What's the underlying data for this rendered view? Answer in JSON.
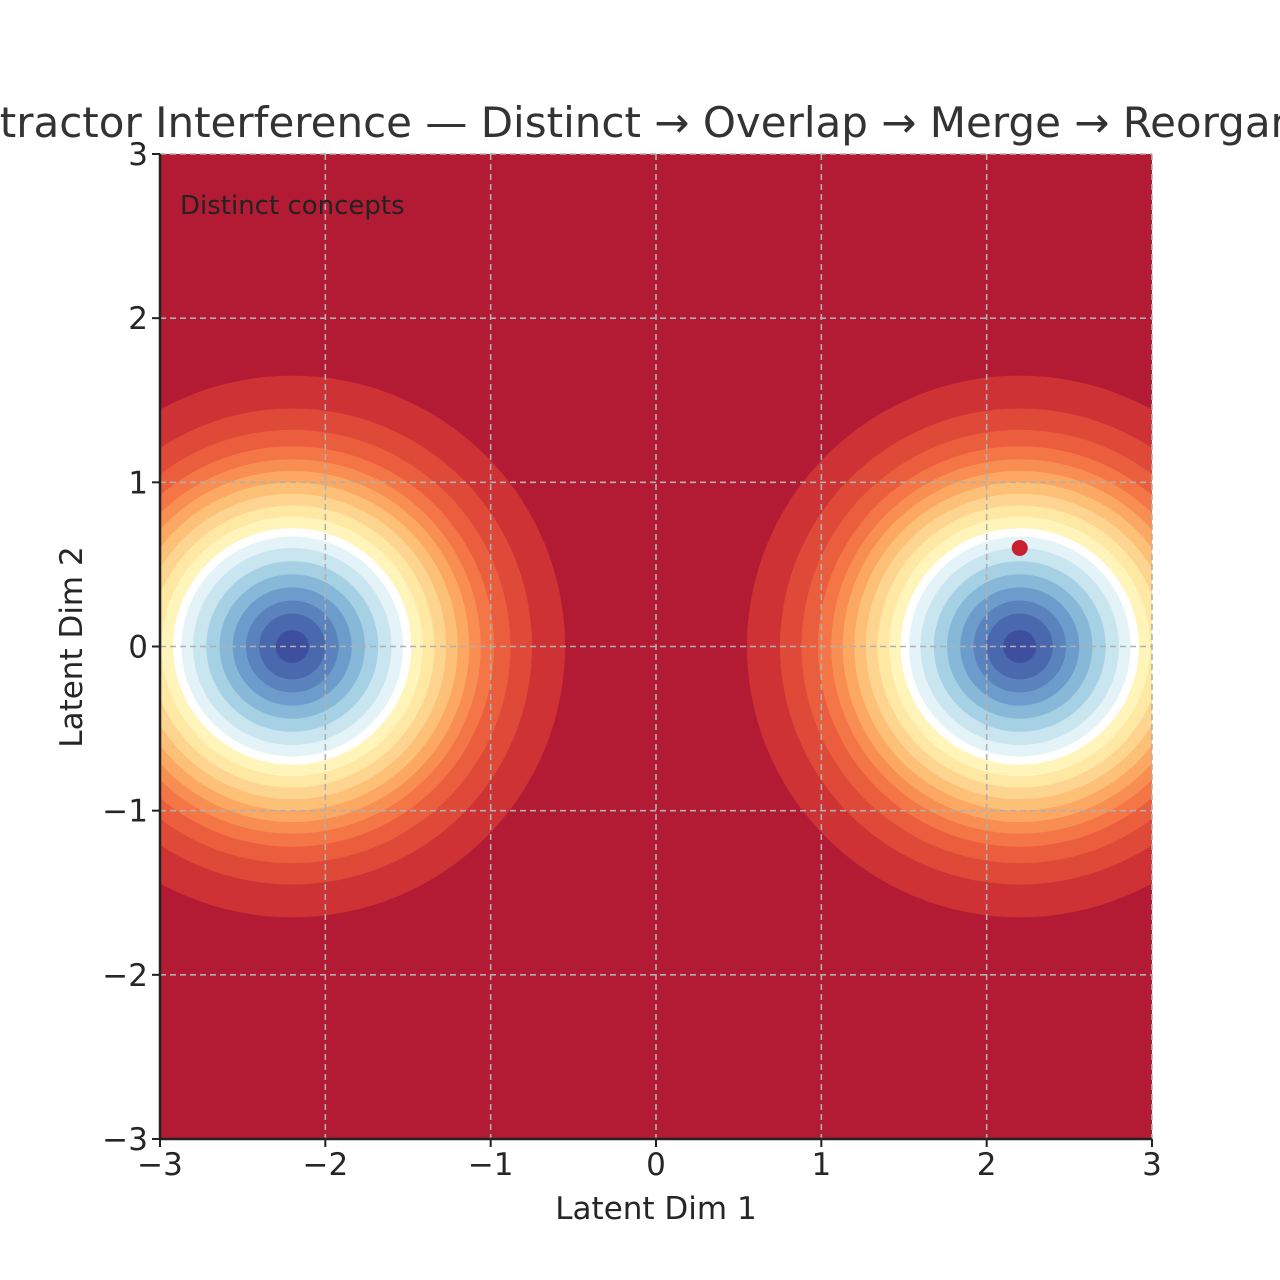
{
  "chart_data": {
    "type": "heatmap",
    "subtype": "filled-contour",
    "title": "Attractor Interference — Distinct → Overlap → Merge → Reorganize",
    "xlabel": "Latent Dim 1",
    "ylabel": "Latent Dim 2",
    "xlim": [
      -3,
      3
    ],
    "ylim": [
      -3,
      3
    ],
    "xticks": [
      -3,
      -2,
      -1,
      0,
      1,
      2,
      3
    ],
    "yticks": [
      -3,
      -2,
      -1,
      0,
      1,
      2,
      3
    ],
    "xtick_labels": [
      "−3",
      "−2",
      "−1",
      "0",
      "1",
      "2",
      "3"
    ],
    "ytick_labels": [
      "−3",
      "−2",
      "−1",
      "0",
      "1",
      "2",
      "3"
    ],
    "grid": true,
    "colormap": "RdYlBu (low = blue basin, high = red)",
    "annotation": "Distinct concepts",
    "attractors": [
      {
        "center": [
          -2.2,
          0.0
        ]
      },
      {
        "center": [
          2.2,
          0.0
        ]
      }
    ],
    "white_level_radius": 0.72,
    "contour_levels": [
      {
        "radius": 1.65,
        "color": "#ce3235"
      },
      {
        "radius": 1.45,
        "color": "#de4a37"
      },
      {
        "radius": 1.32,
        "color": "#ea5d3d"
      },
      {
        "radius": 1.22,
        "color": "#f47646"
      },
      {
        "radius": 1.14,
        "color": "#f98e52"
      },
      {
        "radius": 1.07,
        "color": "#fca863"
      },
      {
        "radius": 1.0,
        "color": "#fdc077"
      },
      {
        "radius": 0.93,
        "color": "#fed590"
      },
      {
        "radius": 0.86,
        "color": "#fee8a4"
      },
      {
        "radius": 0.79,
        "color": "#fff5bb"
      },
      {
        "radius": 0.72,
        "color": "#ffffff"
      },
      {
        "radius": 0.67,
        "color": "#e4f3f7"
      },
      {
        "radius": 0.6,
        "color": "#c9e5ef"
      },
      {
        "radius": 0.52,
        "color": "#a6d1e5"
      },
      {
        "radius": 0.44,
        "color": "#88b8d8"
      },
      {
        "radius": 0.36,
        "color": "#6c9ccb"
      },
      {
        "radius": 0.28,
        "color": "#5a82bd"
      },
      {
        "radius": 0.2,
        "color": "#4a68ad"
      },
      {
        "radius": 0.1,
        "color": "#3f4fa0"
      }
    ],
    "background_color": "#b21b33",
    "state_point": {
      "x": 2.2,
      "y": 0.6,
      "color": "#c8202f"
    }
  }
}
